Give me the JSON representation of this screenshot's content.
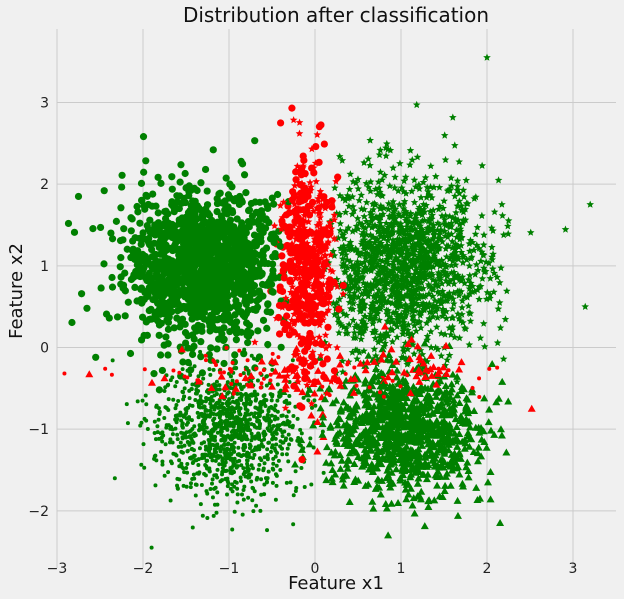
{
  "chart_data": {
    "type": "scatter",
    "title": "Distribution after classification",
    "xlabel": "Feature x1",
    "ylabel": "Feature x2",
    "xlim": [
      -3,
      3.5
    ],
    "ylim": [
      -2.7,
      3.9
    ],
    "grid": true,
    "xticks": [
      -3,
      -2,
      -1,
      0,
      1,
      2,
      3
    ],
    "yticks": [
      -2,
      -1,
      0,
      1,
      2,
      3
    ],
    "xtick_labels": [
      "−3",
      "−2",
      "−1",
      "0",
      "1",
      "2",
      "3"
    ],
    "ytick_labels": [
      "−2",
      "−1",
      "0",
      "1",
      "2",
      "3"
    ],
    "clusters": [
      {
        "name": "upper-left",
        "marker": "circle",
        "center": [
          -1.3,
          1.0
        ],
        "spread": [
          0.45,
          0.45
        ],
        "color": "#008000"
      },
      {
        "name": "upper-right",
        "marker": "star",
        "center": [
          1.0,
          1.0
        ],
        "spread": [
          0.5,
          0.55
        ],
        "color": "#008000"
      },
      {
        "name": "lower-left",
        "marker": "dot",
        "center": [
          -1.0,
          -1.0
        ],
        "spread": [
          0.4,
          0.4
        ],
        "color": "#008000"
      },
      {
        "name": "lower-right",
        "marker": "triangle",
        "center": [
          1.0,
          -1.0
        ],
        "spread": [
          0.45,
          0.38
        ],
        "color": "#008000"
      }
    ],
    "misclassified_color": "#ff0000",
    "boundary_x": [
      -0.45,
      0.3
    ],
    "sample_points": [
      {
        "x": 2.0,
        "y": 3.55,
        "marker": "star",
        "color": "#008000"
      },
      {
        "x": 3.2,
        "y": 1.75,
        "marker": "star",
        "color": "#008000"
      },
      {
        "x": -2.75,
        "y": 1.85,
        "marker": "circle",
        "color": "#008000"
      },
      {
        "x": -2.55,
        "y": -0.12,
        "marker": "circle",
        "color": "#008000"
      },
      {
        "x": -1.9,
        "y": -2.45,
        "marker": "dot",
        "color": "#008000"
      },
      {
        "x": 0.85,
        "y": -2.3,
        "marker": "triangle",
        "color": "#008000"
      },
      {
        "x": 2.52,
        "y": -0.75,
        "marker": "triangle",
        "color": "#ff0000"
      },
      {
        "x": -0.4,
        "y": 2.75,
        "marker": "circle",
        "color": "#ff0000"
      }
    ]
  }
}
